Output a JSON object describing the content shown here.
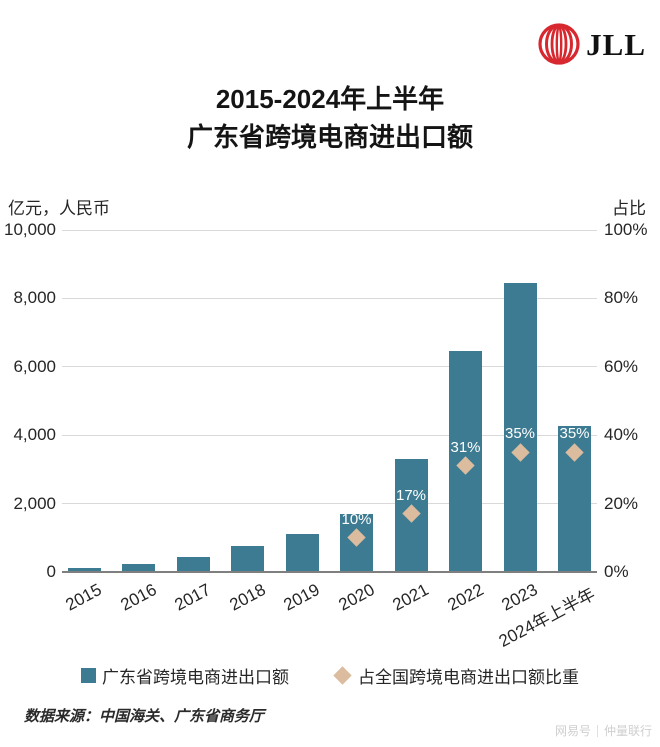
{
  "header": {
    "logo_text": "JLL"
  },
  "title": {
    "line1": "2015-2024年上半年",
    "line2": "广东省跨境电商进出口额"
  },
  "axes": {
    "left_unit": "亿元，人民币",
    "right_unit": "占比",
    "left_ticks": [
      "10,000",
      "8,000",
      "6,000",
      "4,000",
      "2,000",
      "0"
    ],
    "right_ticks": [
      "100%",
      "80%",
      "60%",
      "40%",
      "20%",
      "0%"
    ]
  },
  "legend": {
    "bar_label": "广东省跨境电商进出口额",
    "share_label": "占全国跨境电商进出口额比重"
  },
  "footer": {
    "source": "数据来源：中国海关、广东省商务厅",
    "watermark_left": "网易号",
    "watermark_right": "仲量联行"
  },
  "colors": {
    "bar": "#3D7B92",
    "diamond": "#DBBC9E",
    "grid": "#D9D9D9",
    "axis": "#7F7F7F",
    "text": "#262626",
    "logo_red": "#D7282F",
    "pct_label": "#FFFFFF"
  },
  "chart_data": {
    "type": "bar",
    "title": "2015-2024年上半年 广东省跨境电商进出口额",
    "categories": [
      "2015",
      "2016",
      "2017",
      "2018",
      "2019",
      "2020",
      "2021",
      "2022",
      "2023",
      "2024年上半年"
    ],
    "series": [
      {
        "name": "广东省跨境电商进出口额",
        "type": "bar",
        "axis": "left",
        "values": [
          130,
          220,
          430,
          750,
          1100,
          1700,
          3300,
          6460,
          8460,
          4280
        ]
      },
      {
        "name": "占全国跨境电商进出口额比重",
        "type": "scatter",
        "marker": "diamond",
        "axis": "right",
        "values": [
          null,
          null,
          null,
          null,
          null,
          10,
          17,
          31,
          35,
          35
        ],
        "labels": [
          null,
          null,
          null,
          null,
          null,
          "10%",
          "17%",
          "31%",
          "35%",
          "35%"
        ]
      }
    ],
    "left_axis": {
      "label": "亿元，人民币",
      "min": 0,
      "max": 10000
    },
    "right_axis": {
      "label": "占比",
      "min": 0,
      "max": 100
    },
    "grid": true,
    "legend_position": "bottom"
  }
}
